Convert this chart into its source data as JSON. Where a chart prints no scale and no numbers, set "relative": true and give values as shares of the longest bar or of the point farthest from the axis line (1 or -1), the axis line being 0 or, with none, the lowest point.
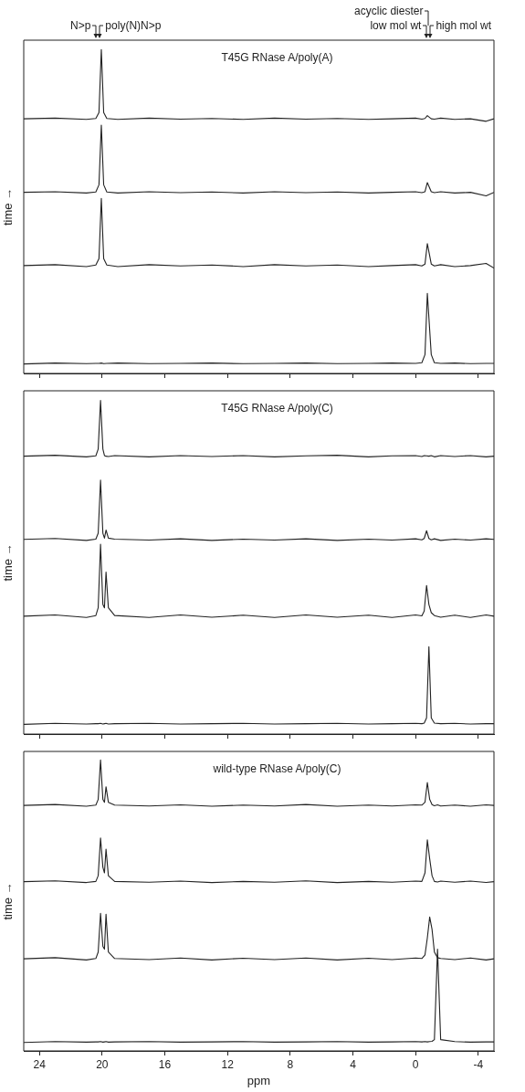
{
  "chart_data": [
    {
      "type": "line",
      "title": "T45G RNase A/poly(A)",
      "ylabel": "time →",
      "relative": true,
      "xlim": [
        25,
        -5
      ],
      "xticks": [
        24,
        20,
        16,
        12,
        8,
        4,
        0,
        -4
      ],
      "tick_labels": false,
      "grid": false,
      "legend": false,
      "marker": "none",
      "line_style": "solid",
      "annotations": [
        "N>p",
        "poly(N)N>p",
        "acyclic diester",
        "low mol wt",
        "high mol wt"
      ],
      "x": [
        25,
        23,
        21,
        20.4,
        20.2,
        20.05,
        19.9,
        19.7,
        19,
        17,
        15,
        13,
        11,
        9,
        7,
        5,
        3,
        1.5,
        0,
        -0.4,
        -0.6,
        -0.75,
        -1.0,
        -1.2,
        -1.6,
        -2.5,
        -3.5,
        -4.5,
        -5
      ],
      "series": [
        {
          "color": "#222222",
          "values": [
            0.78,
            0.782,
            0.778,
            0.781,
            0.8,
            1.0,
            0.8,
            0.781,
            0.778,
            0.782,
            0.779,
            0.781,
            0.778,
            0.782,
            0.779,
            0.781,
            0.778,
            0.78,
            0.782,
            0.779,
            0.781,
            0.79,
            0.78,
            0.779,
            0.782,
            0.778,
            0.78,
            0.772,
            0.78
          ]
        },
        {
          "color": "#222222",
          "values": [
            0.546,
            0.548,
            0.544,
            0.547,
            0.57,
            0.76,
            0.57,
            0.547,
            0.544,
            0.548,
            0.545,
            0.547,
            0.544,
            0.548,
            0.545,
            0.547,
            0.544,
            0.546,
            0.548,
            0.545,
            0.548,
            0.577,
            0.548,
            0.545,
            0.548,
            0.544,
            0.546,
            0.535,
            0.546
          ]
        },
        {
          "color": "#222222",
          "values": [
            0.313,
            0.316,
            0.31,
            0.315,
            0.335,
            0.527,
            0.335,
            0.315,
            0.31,
            0.316,
            0.312,
            0.315,
            0.31,
            0.316,
            0.312,
            0.315,
            0.31,
            0.313,
            0.316,
            0.312,
            0.318,
            0.383,
            0.318,
            0.312,
            0.316,
            0.31,
            0.313,
            0.32,
            0.305
          ]
        },
        {
          "color": "#222222",
          "values": [
            0,
            0.003,
            0.001,
            0.002,
            0.002,
            0.003,
            0.001,
            0.002,
            0.003,
            0.001,
            0.002,
            0.003,
            0.001,
            0.002,
            0.003,
            0.001,
            0.002,
            0.003,
            0.002,
            0.004,
            0.03,
            0.225,
            0.03,
            0.004,
            0.002,
            0.003,
            0.001,
            0.002,
            0.002
          ]
        }
      ]
    },
    {
      "type": "line",
      "title": "T45G RNase A/poly(C)",
      "ylabel": "time →",
      "relative": true,
      "xlim": [
        25,
        -5
      ],
      "xticks": [
        24,
        20,
        16,
        12,
        8,
        4,
        0,
        -4
      ],
      "tick_labels": false,
      "grid": false,
      "legend": false,
      "marker": "none",
      "line_style": "solid",
      "x": [
        25,
        23,
        21,
        20.4,
        20.25,
        20.1,
        19.95,
        19.85,
        19.75,
        19.6,
        19.2,
        17,
        15,
        13,
        11,
        9,
        7,
        5,
        3,
        1.5,
        0,
        -0.4,
        -0.55,
        -0.7,
        -0.85,
        -1.0,
        -1.2,
        -1.6,
        -2.5,
        -3.5,
        -4.5,
        -5
      ],
      "series": [
        {
          "color": "#222222",
          "values": [
            0.828,
            0.831,
            0.826,
            0.829,
            0.85,
            1.0,
            0.85,
            0.83,
            0.828,
            0.827,
            0.83,
            0.826,
            0.83,
            0.827,
            0.83,
            0.826,
            0.829,
            0.831,
            0.826,
            0.829,
            0.83,
            0.827,
            0.83,
            0.829,
            0.828,
            0.83,
            0.826,
            0.83,
            0.827,
            0.83,
            0.826,
            0.828
          ]
        },
        {
          "color": "#222222",
          "values": [
            0.571,
            0.574,
            0.568,
            0.572,
            0.59,
            0.754,
            0.59,
            0.575,
            0.6,
            0.575,
            0.572,
            0.569,
            0.573,
            0.568,
            0.572,
            0.569,
            0.573,
            0.568,
            0.572,
            0.569,
            0.573,
            0.57,
            0.574,
            0.598,
            0.574,
            0.57,
            0.573,
            0.568,
            0.572,
            0.569,
            0.573,
            0.571
          ]
        },
        {
          "color": "#222222",
          "values": [
            0.334,
            0.338,
            0.33,
            0.336,
            0.36,
            0.556,
            0.37,
            0.36,
            0.47,
            0.36,
            0.336,
            0.33,
            0.338,
            0.331,
            0.337,
            0.33,
            0.338,
            0.331,
            0.337,
            0.33,
            0.338,
            0.335,
            0.35,
            0.429,
            0.37,
            0.345,
            0.336,
            0.331,
            0.337,
            0.33,
            0.338,
            0.334
          ]
        },
        {
          "color": "#222222",
          "values": [
            0,
            0.003,
            0.001,
            0.002,
            0.002,
            0.003,
            0.001,
            0.002,
            0.003,
            0.001,
            0.002,
            0.003,
            0.001,
            0.002,
            0.003,
            0.001,
            0.002,
            0.003,
            0.001,
            0.002,
            0.003,
            0.002,
            0.004,
            0.02,
            0.24,
            0.02,
            0.004,
            0.002,
            0.003,
            0.001,
            0.002,
            0.002
          ]
        }
      ]
    },
    {
      "type": "line",
      "title": "wild-type RNase A/poly(C)",
      "ylabel": "time →",
      "xlabel": "ppm",
      "relative": true,
      "xlim": [
        25,
        -5
      ],
      "xticks": [
        24,
        20,
        16,
        12,
        8,
        4,
        0,
        -4
      ],
      "tick_labels": "x",
      "grid": false,
      "legend": false,
      "marker": "none",
      "line_style": "solid",
      "x": [
        25,
        23,
        21,
        20.4,
        20.25,
        20.1,
        19.95,
        19.85,
        19.75,
        19.6,
        19.2,
        17,
        15,
        13,
        11,
        9,
        7,
        5,
        3,
        1.5,
        0,
        -0.4,
        -0.6,
        -0.75,
        -0.9,
        -1.05,
        -1.2,
        -1.4,
        -1.6,
        -2.5,
        -3.5,
        -4.5,
        -5
      ],
      "series": [
        {
          "color": "#222222",
          "values": [
            0.839,
            0.842,
            0.836,
            0.84,
            0.86,
            1.0,
            0.86,
            0.85,
            0.905,
            0.85,
            0.84,
            0.837,
            0.841,
            0.836,
            0.84,
            0.837,
            0.842,
            0.836,
            0.84,
            0.837,
            0.841,
            0.84,
            0.85,
            0.92,
            0.86,
            0.842,
            0.838,
            0.841,
            0.837,
            0.84,
            0.836,
            0.841,
            0.839
          ]
        },
        {
          "color": "#222222",
          "values": [
            0.569,
            0.572,
            0.566,
            0.57,
            0.59,
            0.724,
            0.62,
            0.6,
            0.684,
            0.59,
            0.57,
            0.567,
            0.571,
            0.566,
            0.57,
            0.567,
            0.572,
            0.566,
            0.57,
            0.567,
            0.571,
            0.57,
            0.6,
            0.717,
            0.65,
            0.59,
            0.57,
            0.568,
            0.571,
            0.567,
            0.571,
            0.566,
            0.569
          ]
        },
        {
          "color": "#222222",
          "values": [
            0.296,
            0.3,
            0.292,
            0.297,
            0.32,
            0.457,
            0.34,
            0.33,
            0.454,
            0.32,
            0.297,
            0.293,
            0.299,
            0.292,
            0.298,
            0.293,
            0.299,
            0.292,
            0.298,
            0.293,
            0.299,
            0.297,
            0.31,
            0.37,
            0.444,
            0.4,
            0.32,
            0.3,
            0.297,
            0.293,
            0.299,
            0.292,
            0.296
          ]
        },
        {
          "color": "#222222",
          "values": [
            0,
            0.003,
            0.001,
            0.002,
            0.002,
            0.003,
            0.001,
            0.002,
            0.003,
            0.001,
            0.002,
            0.003,
            0.001,
            0.002,
            0.003,
            0.001,
            0.002,
            0.003,
            0.001,
            0.002,
            0.003,
            0.002,
            0.003,
            0.002,
            0.003,
            0.004,
            0.01,
            0.33,
            0.01,
            0.003,
            0.001,
            0.002,
            0.002
          ]
        }
      ]
    }
  ]
}
